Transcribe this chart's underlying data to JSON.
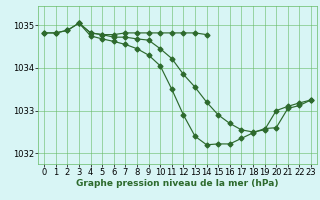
{
  "line1": {
    "x": [
      0,
      1,
      2,
      3,
      4,
      5,
      6,
      7,
      8,
      9,
      10,
      11,
      12,
      13,
      14
    ],
    "y": [
      1034.82,
      1034.82,
      1034.88,
      1035.05,
      1034.82,
      1034.78,
      1034.78,
      1034.82,
      1034.82,
      1034.82,
      1034.82,
      1034.82,
      1034.82,
      1034.82,
      1034.78
    ]
  },
  "line2": {
    "x": [
      0,
      1,
      2,
      3,
      4,
      5,
      6,
      7,
      8,
      9,
      10,
      11,
      12,
      13,
      14,
      15,
      16,
      17,
      18,
      19,
      20,
      21,
      22,
      23
    ],
    "y": [
      1034.82,
      1034.82,
      1034.88,
      1035.05,
      1034.82,
      1034.78,
      1034.72,
      1034.72,
      1034.68,
      1034.65,
      1034.45,
      1034.22,
      1033.85,
      1033.55,
      1033.2,
      1032.9,
      1032.7,
      1032.55,
      1032.5,
      1032.55,
      1033.0,
      1033.1,
      1033.18,
      1033.25
    ]
  },
  "line3": {
    "x": [
      3,
      4,
      5,
      6,
      7,
      8,
      9,
      10,
      11,
      12,
      13,
      14,
      15,
      16,
      17,
      18,
      19,
      20,
      21,
      22,
      23
    ],
    "y": [
      1035.05,
      1034.75,
      1034.68,
      1034.62,
      1034.55,
      1034.45,
      1034.3,
      1034.05,
      1033.5,
      1032.9,
      1032.4,
      1032.2,
      1032.22,
      1032.22,
      1032.35,
      1032.48,
      1032.58,
      1032.6,
      1033.05,
      1033.12,
      1033.25
    ]
  },
  "line_color": "#2d6a2d",
  "marker": "D",
  "markersize": 2.5,
  "bg_color": "#d8f5f5",
  "grid_color": "#66bb66",
  "xlabel": "Graphe pression niveau de la mer (hPa)",
  "xlim_min": -0.5,
  "xlim_max": 23.5,
  "ylim_min": 1031.75,
  "ylim_max": 1035.45,
  "yticks": [
    1032,
    1033,
    1034,
    1035
  ],
  "xticks": [
    0,
    1,
    2,
    3,
    4,
    5,
    6,
    7,
    8,
    9,
    10,
    11,
    12,
    13,
    14,
    15,
    16,
    17,
    18,
    19,
    20,
    21,
    22,
    23
  ],
  "xlabel_fontsize": 6.5,
  "tick_fontsize": 6.0,
  "linewidth": 0.85
}
